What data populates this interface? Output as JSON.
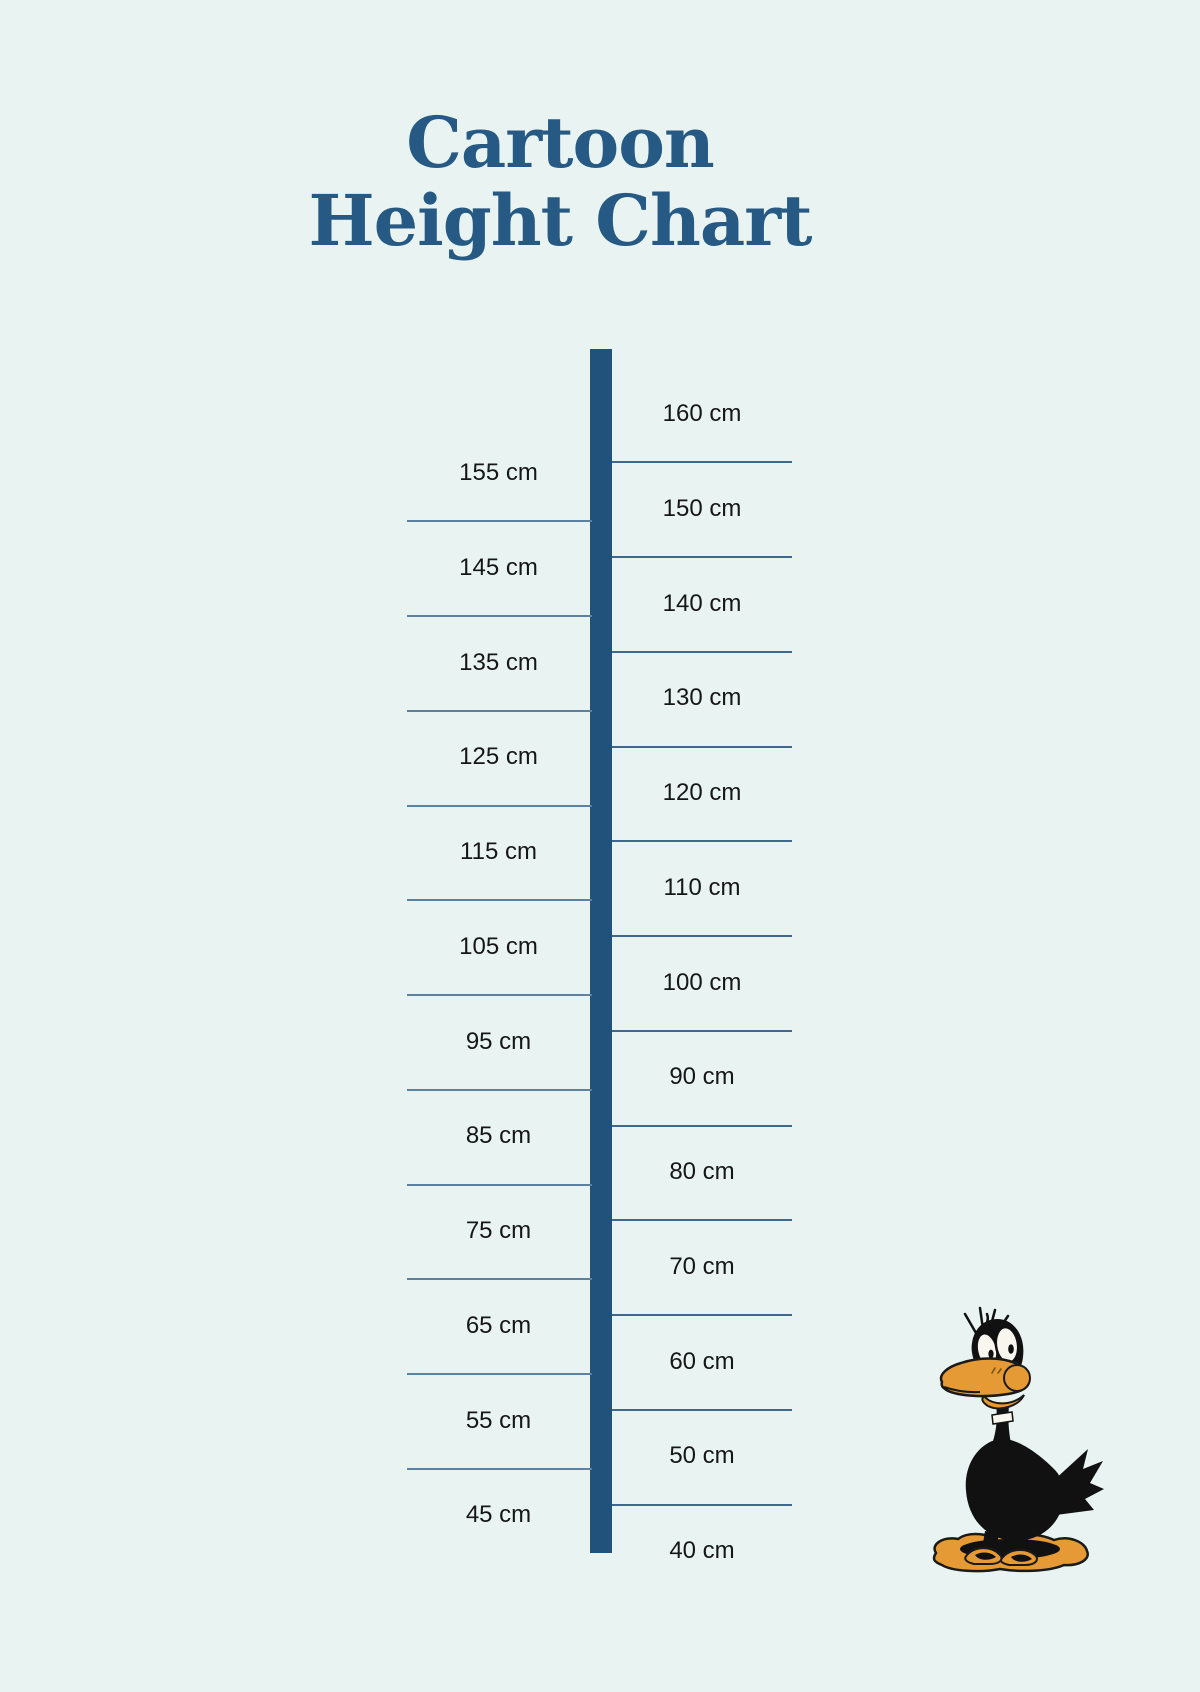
{
  "page": {
    "background_color": "#e9f4f2"
  },
  "title": {
    "line1": "Cartoon",
    "line2": "Height Chart",
    "color": "#265a84"
  },
  "chart_data": {
    "type": "table",
    "title": "Cartoon Height Chart",
    "unit": "cm",
    "axis_min_cm": 40,
    "axis_max_cm": 160,
    "step_cm": 10,
    "right_labels": [
      "160 cm",
      "150 cm",
      "140 cm",
      "130 cm",
      "120 cm",
      "110 cm",
      "100 cm",
      "90 cm",
      "80 cm",
      "70 cm",
      "60 cm",
      "50 cm",
      "40 cm"
    ],
    "right_values": [
      160,
      150,
      140,
      130,
      120,
      110,
      100,
      90,
      80,
      70,
      60,
      50,
      40
    ],
    "left_labels": [
      "155 cm",
      "145 cm",
      "135 cm",
      "125 cm",
      "115 cm",
      "105 cm",
      "95 cm",
      "85 cm",
      "75 cm",
      "65 cm",
      "55 cm",
      "45 cm"
    ],
    "left_values": [
      155,
      145,
      135,
      125,
      115,
      105,
      95,
      85,
      75,
      65,
      55,
      45
    ],
    "layout_hint": "vertical measuring ruler; 10 cm multiples labeled on right, 5 cm offsets labeled on left; tick lines separate bands on each side"
  },
  "colors": {
    "ruler_bar": "#21527b",
    "tick_line_right": "#40688c",
    "tick_line_left": "#5d81a0",
    "label_text": "#161616",
    "duck_black": "#111111",
    "duck_orange": "#e69a35",
    "eye_white": "#f8f6ef"
  },
  "illustration": {
    "name": "daffy-duck",
    "alt": "Worried black cartoon duck with orange bill standing on a crumpled orange blanket"
  }
}
